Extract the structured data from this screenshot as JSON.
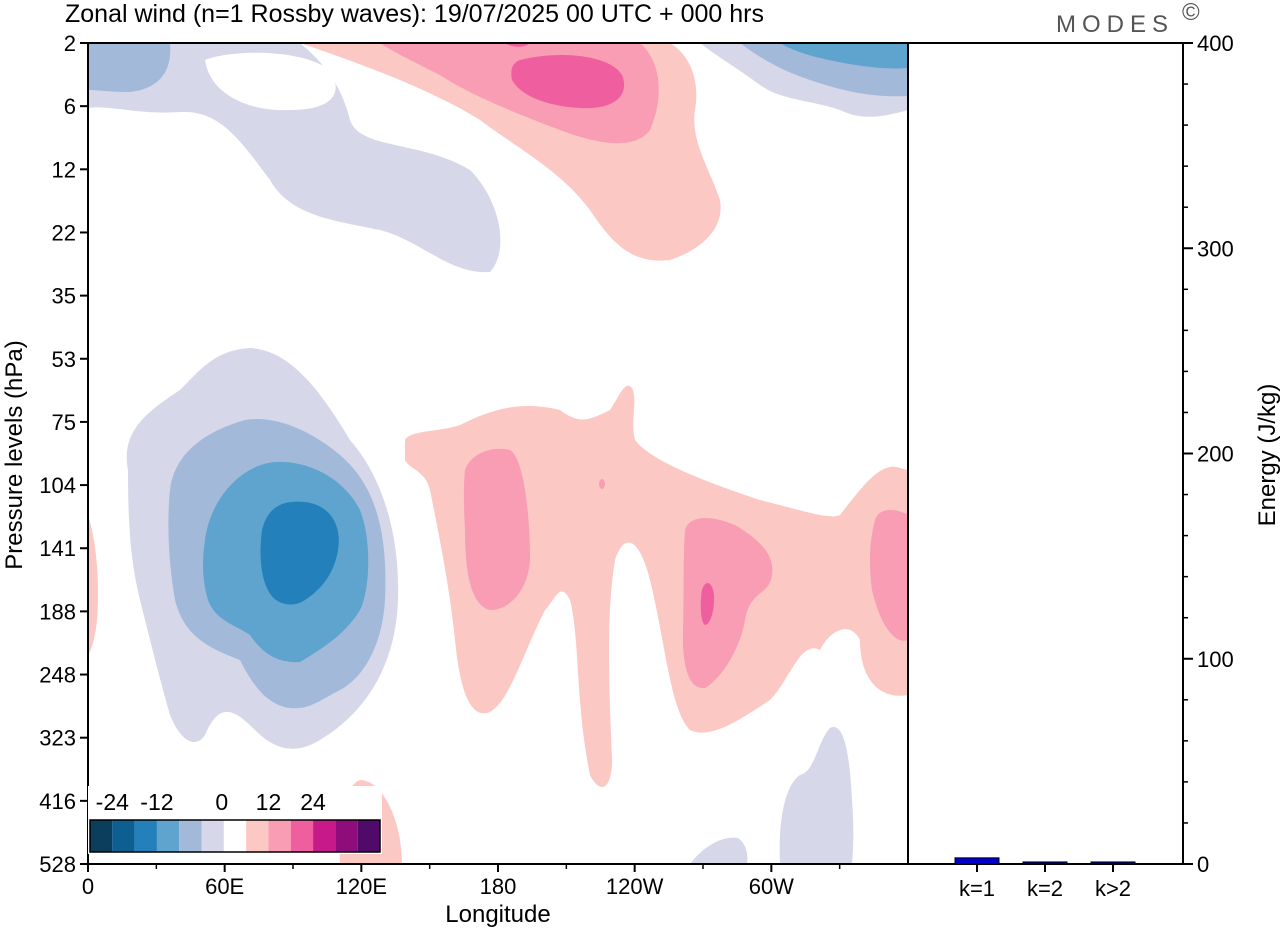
{
  "title": "Zonal wind (n=1 Rossby waves):  19/07/2025  00 UTC  + 000 hrs",
  "logo": "MODES",
  "logo_mark": "©",
  "chart_data": [
    {
      "type": "heatmap",
      "name": "zonal-wind-contour",
      "xlabel": "Longitude",
      "ylabel": "Pressure levels (hPa)",
      "x_ticks": [
        {
          "label": "0",
          "lon": 0
        },
        {
          "label": "60E",
          "lon": 60
        },
        {
          "label": "120E",
          "lon": 120
        },
        {
          "label": "180",
          "lon": 180
        },
        {
          "label": "120W",
          "lon": 240
        },
        {
          "label": "60W",
          "lon": 300
        }
      ],
      "xlim": [
        0,
        360
      ],
      "y_levels": [
        "2",
        "6",
        "12",
        "22",
        "35",
        "53",
        "75",
        "104",
        "141",
        "188",
        "248",
        "323",
        "416",
        "528"
      ],
      "colorbar": {
        "tick_labels": [
          "-24",
          "-12",
          "0",
          "12",
          "24"
        ],
        "tick_values": [
          -24,
          -12,
          0,
          12,
          24
        ],
        "bins": [
          -30,
          -24,
          -18,
          -12,
          -6,
          -2,
          2,
          6,
          12,
          18,
          24,
          30,
          36
        ],
        "colors": [
          "#0b3d5c",
          "#0e5f91",
          "#2380ba",
          "#5fa3cf",
          "#a3b9da",
          "#d6d7e8",
          "#ffffff",
          "#fbc8c4",
          "#f89db3",
          "#ef5fa0",
          "#c8198a",
          "#8e0d7b",
          "#4f0a6a"
        ]
      },
      "features": [
        {
          "sign": "negative",
          "level": 1,
          "lon": [
            0,
            60
          ],
          "pressure_idx": [
            0,
            0.8
          ]
        },
        {
          "sign": "negative",
          "level": 3,
          "lon": [
            300,
            360
          ],
          "pressure_idx": [
            0,
            1
          ]
        },
        {
          "sign": "positive",
          "level": 3,
          "lon": [
            180,
            235
          ],
          "pressure_idx": [
            0,
            4
          ]
        },
        {
          "sign": "negative",
          "level": 4,
          "lon": [
            20,
            140
          ],
          "pressure_idx": [
            5,
            11
          ]
        },
        {
          "sign": "positive",
          "level": 3,
          "lon": [
            140,
            360
          ],
          "pressure_idx": [
            6,
            11.5
          ]
        },
        {
          "sign": "negative",
          "level": 1,
          "lon": [
            275,
            335
          ],
          "pressure_idx": [
            11,
            13
          ]
        }
      ]
    },
    {
      "type": "bar",
      "name": "energy-spectrum",
      "categories": [
        "k=1",
        "k=2",
        "k>2"
      ],
      "values": [
        3,
        1,
        1
      ],
      "ylabel": "Energy (J/kg)",
      "ylim": [
        0,
        400
      ],
      "y_ticks": [
        0,
        100,
        200,
        300,
        400
      ],
      "bar_colors": [
        "#0000cc",
        "#000080",
        "#000080"
      ]
    }
  ]
}
